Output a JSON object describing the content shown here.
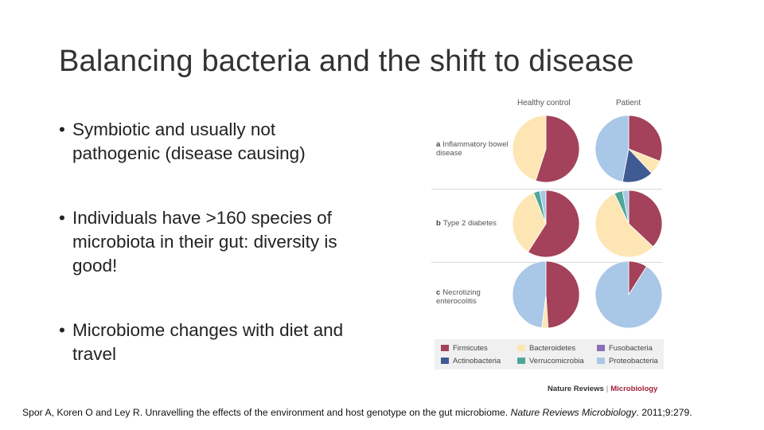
{
  "title": "Balancing bacteria and the shift to disease",
  "bullets": [
    {
      "marker": "•",
      "text": "Symbiotic and usually not pathogenic (disease causing)"
    },
    {
      "marker": "•",
      "text": "Individuals have >160 species of microbiota in their gut: diversity is good!"
    },
    {
      "marker": "•",
      "text": "Microbiome changes with diet and travel"
    }
  ],
  "figure": {
    "columns": [
      "Healthy control",
      "Patient"
    ],
    "rows": [
      {
        "letter": "a",
        "label": "Inflammatory bowel disease"
      },
      {
        "letter": "b",
        "label": "Type 2 diabetes"
      },
      {
        "letter": "c",
        "label": "Necrotizing enterocolitis"
      }
    ],
    "colors": {
      "Firmicutes": "#a3425a",
      "Bacteroidetes": "#fde6b4",
      "Fusobacteria": "#8a6fb5",
      "Actinobacteria": "#405a94",
      "Verrucomicrobia": "#4fa79a",
      "Proteobacteria": "#a9c7e6"
    },
    "pies": [
      {
        "row": 0,
        "col": 0,
        "slices": [
          {
            "taxon": "Firmicutes",
            "fraction": 0.55
          },
          {
            "taxon": "Bacteroidetes",
            "fraction": 0.45
          }
        ]
      },
      {
        "row": 0,
        "col": 1,
        "slices": [
          {
            "taxon": "Firmicutes",
            "fraction": 0.31
          },
          {
            "taxon": "Bacteroidetes",
            "fraction": 0.07
          },
          {
            "taxon": "Actinobacteria",
            "fraction": 0.15
          },
          {
            "taxon": "Proteobacteria",
            "fraction": 0.47
          }
        ]
      },
      {
        "row": 1,
        "col": 0,
        "slices": [
          {
            "taxon": "Firmicutes",
            "fraction": 0.59
          },
          {
            "taxon": "Bacteroidetes",
            "fraction": 0.35
          },
          {
            "taxon": "Verrucomicrobia",
            "fraction": 0.03
          },
          {
            "taxon": "Proteobacteria",
            "fraction": 0.03
          }
        ]
      },
      {
        "row": 1,
        "col": 1,
        "slices": [
          {
            "taxon": "Firmicutes",
            "fraction": 0.37
          },
          {
            "taxon": "Bacteroidetes",
            "fraction": 0.56
          },
          {
            "taxon": "Verrucomicrobia",
            "fraction": 0.04
          },
          {
            "taxon": "Proteobacteria",
            "fraction": 0.03
          }
        ]
      },
      {
        "row": 2,
        "col": 0,
        "slices": [
          {
            "taxon": "Firmicutes",
            "fraction": 0.49
          },
          {
            "taxon": "Bacteroidetes",
            "fraction": 0.03
          },
          {
            "taxon": "Proteobacteria",
            "fraction": 0.48
          }
        ]
      },
      {
        "row": 2,
        "col": 1,
        "slices": [
          {
            "taxon": "Firmicutes",
            "fraction": 0.09
          },
          {
            "taxon": "Proteobacteria",
            "fraction": 0.91
          }
        ]
      }
    ],
    "legend": [
      "Firmicutes",
      "Bacteroidetes",
      "Fusobacteria",
      "Actinobacteria",
      "Verrucomicrobia",
      "Proteobacteria"
    ],
    "credit": {
      "left": "Nature Reviews",
      "separator": "|",
      "right": "Microbiology"
    }
  },
  "citation": {
    "authors": "Spor A, Koren O and Ley R. Unravelling the effects of the environment and host genotype on the gut microbiome.",
    "journal": "Nature Reviews Microbiology",
    "details": ". 2011;9:279."
  }
}
